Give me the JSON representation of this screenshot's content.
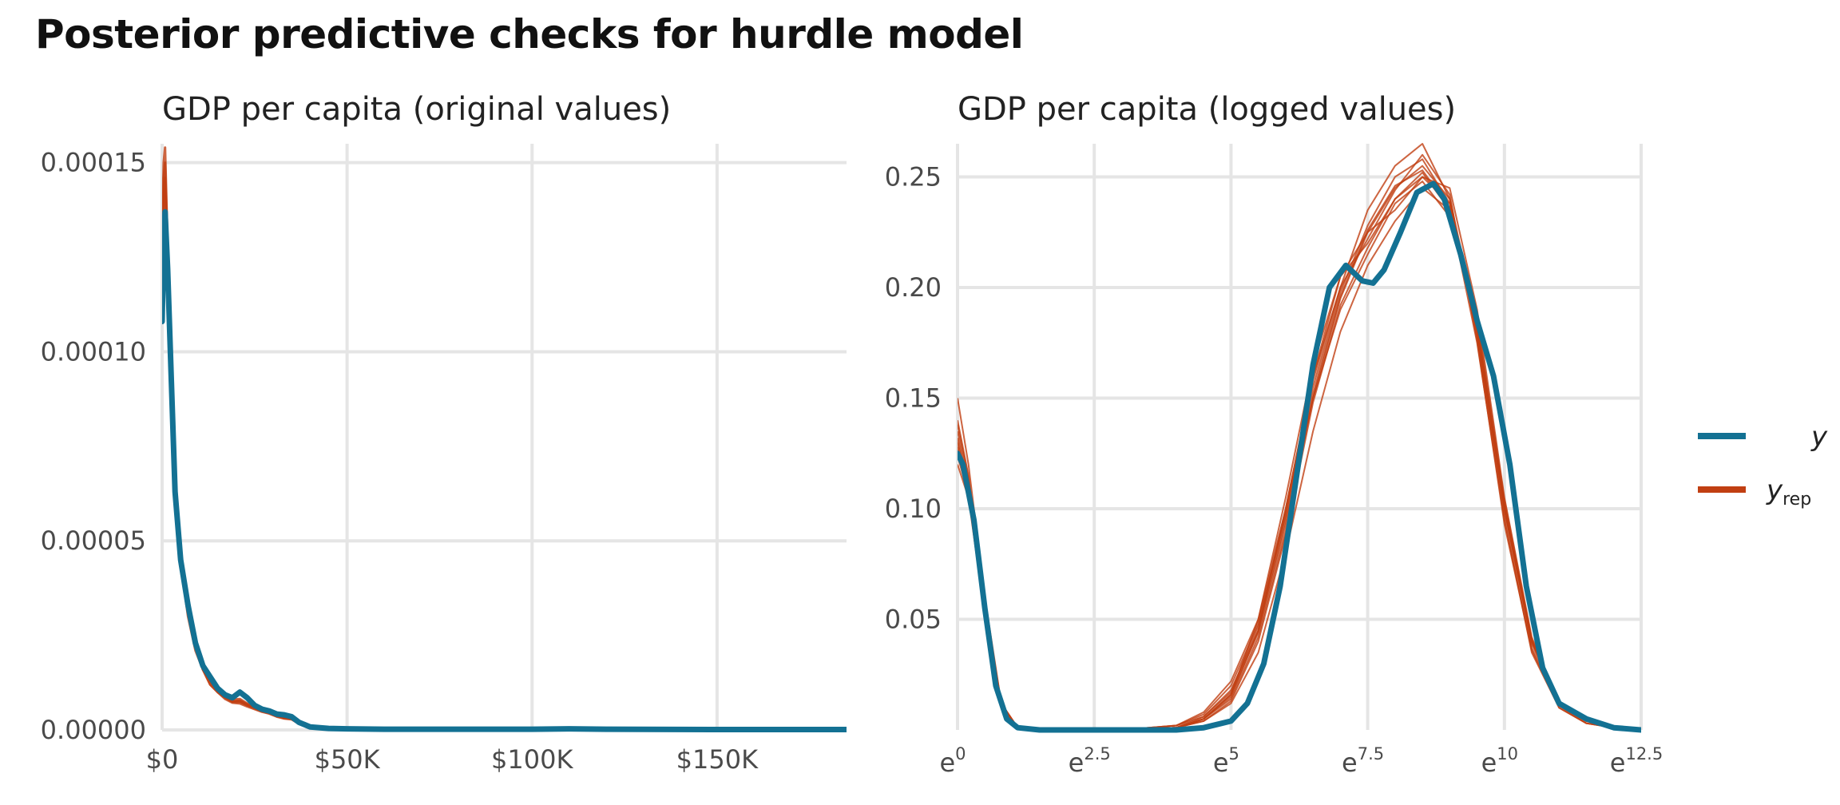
{
  "title": "Posterior predictive checks for hurdle model",
  "colors": {
    "y": "#137193",
    "yrep": "#c13f12",
    "grid": "#e5e5e5"
  },
  "legend": {
    "position": "right",
    "items": [
      {
        "key": "y",
        "label": "y",
        "sub": ""
      },
      {
        "key": "yrep",
        "label": "y",
        "sub": "rep"
      }
    ]
  },
  "chart_data": [
    {
      "type": "line",
      "title": "GDP per capita (original values)",
      "xlabel": "",
      "ylabel": "",
      "xlim": [
        0,
        185000
      ],
      "ylim": [
        0,
        0.000155
      ],
      "grid": true,
      "x_ticks": [
        {
          "value": 0,
          "label": "$0"
        },
        {
          "value": 50000,
          "label": "$50K"
        },
        {
          "value": 100000,
          "label": "$100K"
        },
        {
          "value": 150000,
          "label": "$150K"
        }
      ],
      "y_ticks": [
        {
          "value": 0,
          "label": "0.00000"
        },
        {
          "value": 5e-05,
          "label": "0.00005"
        },
        {
          "value": 0.0001,
          "label": "0.00010"
        },
        {
          "value": 0.00015,
          "label": "0.00015"
        }
      ],
      "y": {
        "x": [
          0,
          400,
          800,
          1500,
          2500,
          3500,
          5000,
          7000,
          9000,
          11000,
          13000,
          15000,
          17000,
          19000,
          21000,
          23000,
          25000,
          27000,
          29000,
          31000,
          33000,
          35000,
          37000,
          40000,
          45000,
          50000,
          60000,
          80000,
          100000,
          110000,
          120000,
          150000,
          185000
        ],
        "values": [
          0.000108,
          0.000128,
          0.000137,
          0.000122,
          9.2e-05,
          6.3e-05,
          4.5e-05,
          3.3e-05,
          2.3e-05,
          1.7e-05,
          1.4e-05,
          1.1e-05,
          9.3e-06,
          8.5e-06,
          1e-05,
          8.5e-06,
          6.5e-06,
          5.5e-06,
          5e-06,
          4.2e-06,
          4e-06,
          3.5e-06,
          2e-06,
          8e-07,
          4e-07,
          3e-07,
          2e-07,
          2e-07,
          2e-07,
          3e-07,
          2e-07,
          1e-07,
          1e-07
        ]
      },
      "yrep": {
        "x": [
          0,
          400,
          800,
          1500,
          2500,
          3500,
          5000,
          7000,
          9000,
          11000,
          13000,
          15000,
          17000,
          19000,
          21000,
          23000,
          25000,
          27000,
          29000,
          31000,
          33000,
          35000,
          37000,
          40000,
          45000,
          50000,
          60000
        ],
        "draws": [
          [
            0.000122,
            0.000144,
            0.000146,
            0.000125,
            9.3e-05,
            6.4e-05,
            4.5e-05,
            3.2e-05,
            2.2e-05,
            1.6e-05,
            1.3e-05,
            1.1e-05,
            8.8e-06,
            7.5e-06,
            7.8e-06,
            6.8e-06,
            5.8e-06,
            5e-06,
            4.6e-06,
            3.8e-06,
            3.2e-06,
            3e-06,
            1.8e-06,
            7e-07,
            3e-07,
            2e-07,
            1e-07
          ],
          [
            0.00013,
            0.00015,
            0.000154,
            0.000128,
            9.4e-05,
            6.3e-05,
            4.4e-05,
            3e-05,
            2.1e-05,
            1.6e-05,
            1.2e-05,
            1e-05,
            8.2e-06,
            7.2e-06,
            7e-06,
            6.2e-06,
            5.5e-06,
            4.8e-06,
            4.3e-06,
            3.5e-06,
            3e-06,
            2.8e-06,
            1.6e-06,
            6e-07,
            3e-07,
            2e-07,
            1e-07
          ],
          [
            0.000118,
            0.00014,
            0.000143,
            0.000124,
            9.2e-05,
            6.2e-05,
            4.4e-05,
            3.1e-05,
            2.3e-05,
            1.7e-05,
            1.3e-05,
            1.1e-05,
            9e-06,
            8e-06,
            8.2e-06,
            7e-06,
            6e-06,
            5.2e-06,
            4.8e-06,
            4e-06,
            3.4e-06,
            3.2e-06,
            1.9e-06,
            7e-07,
            3e-07,
            2e-07,
            1e-07
          ],
          [
            0.000126,
            0.000146,
            0.00015,
            0.000126,
            9.3e-05,
            6.3e-05,
            4.5e-05,
            3.1e-05,
            2.2e-05,
            1.6e-05,
            1.2e-05,
            1e-05,
            8.5e-06,
            7.4e-06,
            7.4e-06,
            6.5e-06,
            5.7e-06,
            4.9e-06,
            4.5e-06,
            3.7e-06,
            3.1e-06,
            2.9e-06,
            1.7e-06,
            6e-07,
            3e-07,
            2e-07,
            1e-07
          ],
          [
            0.00012,
            0.000142,
            0.000145,
            0.000124,
            9.2e-05,
            6.3e-05,
            4.5e-05,
            3.2e-05,
            2.2e-05,
            1.6e-05,
            1.3e-05,
            1e-05,
            8.7e-06,
            7.6e-06,
            7.6e-06,
            6.7e-06,
            5.8e-06,
            5e-06,
            4.4e-06,
            3.6e-06,
            3.3e-06,
            3.1e-06,
            1.8e-06,
            7e-07,
            3e-07,
            2e-07,
            1e-07
          ]
        ]
      }
    },
    {
      "type": "line",
      "title": "GDP per capita (logged values)",
      "xlabel": "",
      "ylabel": "",
      "xlim": [
        0,
        12.5
      ],
      "ylim": [
        0,
        0.265
      ],
      "x_scale": "log (exponent shown)",
      "grid": true,
      "x_ticks": [
        {
          "value": 0,
          "base": "e",
          "exp": "0"
        },
        {
          "value": 2.5,
          "base": "e",
          "exp": "2.5"
        },
        {
          "value": 5,
          "base": "e",
          "exp": "5"
        },
        {
          "value": 7.5,
          "base": "e",
          "exp": "7.5"
        },
        {
          "value": 10,
          "base": "e",
          "exp": "10"
        },
        {
          "value": 12.5,
          "base": "e",
          "exp": "12.5"
        }
      ],
      "y_ticks": [
        {
          "value": 0.05,
          "label": "0.05"
        },
        {
          "value": 0.1,
          "label": "0.10"
        },
        {
          "value": 0.15,
          "label": "0.15"
        },
        {
          "value": 0.2,
          "label": "0.20"
        },
        {
          "value": 0.25,
          "label": "0.25"
        }
      ],
      "y": {
        "x": [
          0,
          0.1,
          0.3,
          0.5,
          0.7,
          0.9,
          1.1,
          1.5,
          2,
          3,
          4,
          4.5,
          5,
          5.3,
          5.6,
          5.9,
          6.2,
          6.5,
          6.8,
          7.1,
          7.4,
          7.6,
          7.8,
          8.1,
          8.4,
          8.7,
          8.9,
          9.2,
          9.5,
          9.8,
          10.1,
          10.4,
          10.7,
          11,
          11.5,
          12,
          12.5
        ],
        "values": [
          0.125,
          0.12,
          0.095,
          0.055,
          0.02,
          0.005,
          0.001,
          0,
          0,
          0,
          0,
          0.001,
          0.004,
          0.012,
          0.03,
          0.065,
          0.115,
          0.165,
          0.2,
          0.21,
          0.203,
          0.202,
          0.208,
          0.225,
          0.243,
          0.247,
          0.24,
          0.215,
          0.185,
          0.16,
          0.12,
          0.065,
          0.028,
          0.012,
          0.005,
          0.001,
          0
        ]
      },
      "yrep": {
        "x": [
          0,
          0.2,
          0.5,
          0.8,
          1.1,
          1.5,
          3,
          4,
          4.5,
          5,
          5.5,
          6,
          6.5,
          7,
          7.5,
          8,
          8.5,
          9,
          9.5,
          10,
          10.5,
          11,
          11.5,
          12,
          12.5
        ],
        "draws": [
          [
            0.15,
            0.12,
            0.06,
            0.012,
            0.001,
            0,
            0,
            0.002,
            0.008,
            0.022,
            0.05,
            0.1,
            0.16,
            0.2,
            0.235,
            0.255,
            0.265,
            0.24,
            0.18,
            0.1,
            0.04,
            0.012,
            0.004,
            0.001,
            0
          ],
          [
            0.13,
            0.11,
            0.055,
            0.011,
            0.001,
            0,
            0,
            0.001,
            0.005,
            0.015,
            0.045,
            0.1,
            0.16,
            0.205,
            0.22,
            0.24,
            0.252,
            0.235,
            0.175,
            0.095,
            0.035,
            0.01,
            0.003,
            0.001,
            0
          ],
          [
            0.14,
            0.115,
            0.058,
            0.012,
            0.001,
            0,
            0,
            0.001,
            0.006,
            0.018,
            0.045,
            0.095,
            0.15,
            0.195,
            0.225,
            0.245,
            0.255,
            0.24,
            0.185,
            0.1,
            0.04,
            0.012,
            0.004,
            0.001,
            0
          ],
          [
            0.12,
            0.105,
            0.052,
            0.01,
            0.001,
            0,
            0,
            0.001,
            0.004,
            0.012,
            0.035,
            0.08,
            0.135,
            0.18,
            0.21,
            0.23,
            0.245,
            0.235,
            0.18,
            0.1,
            0.04,
            0.012,
            0.004,
            0.001,
            0
          ],
          [
            0.125,
            0.108,
            0.054,
            0.011,
            0.001,
            0,
            0,
            0.001,
            0.005,
            0.016,
            0.05,
            0.105,
            0.165,
            0.205,
            0.225,
            0.235,
            0.25,
            0.245,
            0.19,
            0.105,
            0.042,
            0.012,
            0.004,
            0.001,
            0
          ],
          [
            0.135,
            0.112,
            0.056,
            0.011,
            0.001,
            0,
            0,
            0.002,
            0.007,
            0.02,
            0.048,
            0.098,
            0.155,
            0.198,
            0.228,
            0.25,
            0.258,
            0.238,
            0.178,
            0.097,
            0.037,
            0.011,
            0.003,
            0.001,
            0
          ],
          [
            0.128,
            0.108,
            0.053,
            0.011,
            0.001,
            0,
            0,
            0.001,
            0.005,
            0.014,
            0.042,
            0.09,
            0.15,
            0.19,
            0.215,
            0.238,
            0.248,
            0.232,
            0.182,
            0.102,
            0.041,
            0.012,
            0.004,
            0.001,
            0
          ],
          [
            0.132,
            0.11,
            0.055,
            0.011,
            0.001,
            0,
            0,
            0.002,
            0.006,
            0.017,
            0.047,
            0.097,
            0.158,
            0.2,
            0.222,
            0.244,
            0.26,
            0.242,
            0.176,
            0.093,
            0.036,
            0.01,
            0.003,
            0.001,
            0
          ],
          [
            0.138,
            0.114,
            0.057,
            0.012,
            0.001,
            0,
            0,
            0.001,
            0.005,
            0.016,
            0.044,
            0.093,
            0.152,
            0.196,
            0.226,
            0.246,
            0.253,
            0.236,
            0.183,
            0.101,
            0.039,
            0.011,
            0.004,
            0.001,
            0
          ],
          [
            0.124,
            0.106,
            0.052,
            0.01,
            0.001,
            0,
            0,
            0.001,
            0.004,
            0.013,
            0.04,
            0.088,
            0.148,
            0.192,
            0.218,
            0.24,
            0.25,
            0.238,
            0.186,
            0.104,
            0.041,
            0.012,
            0.004,
            0.001,
            0
          ]
        ]
      }
    }
  ]
}
